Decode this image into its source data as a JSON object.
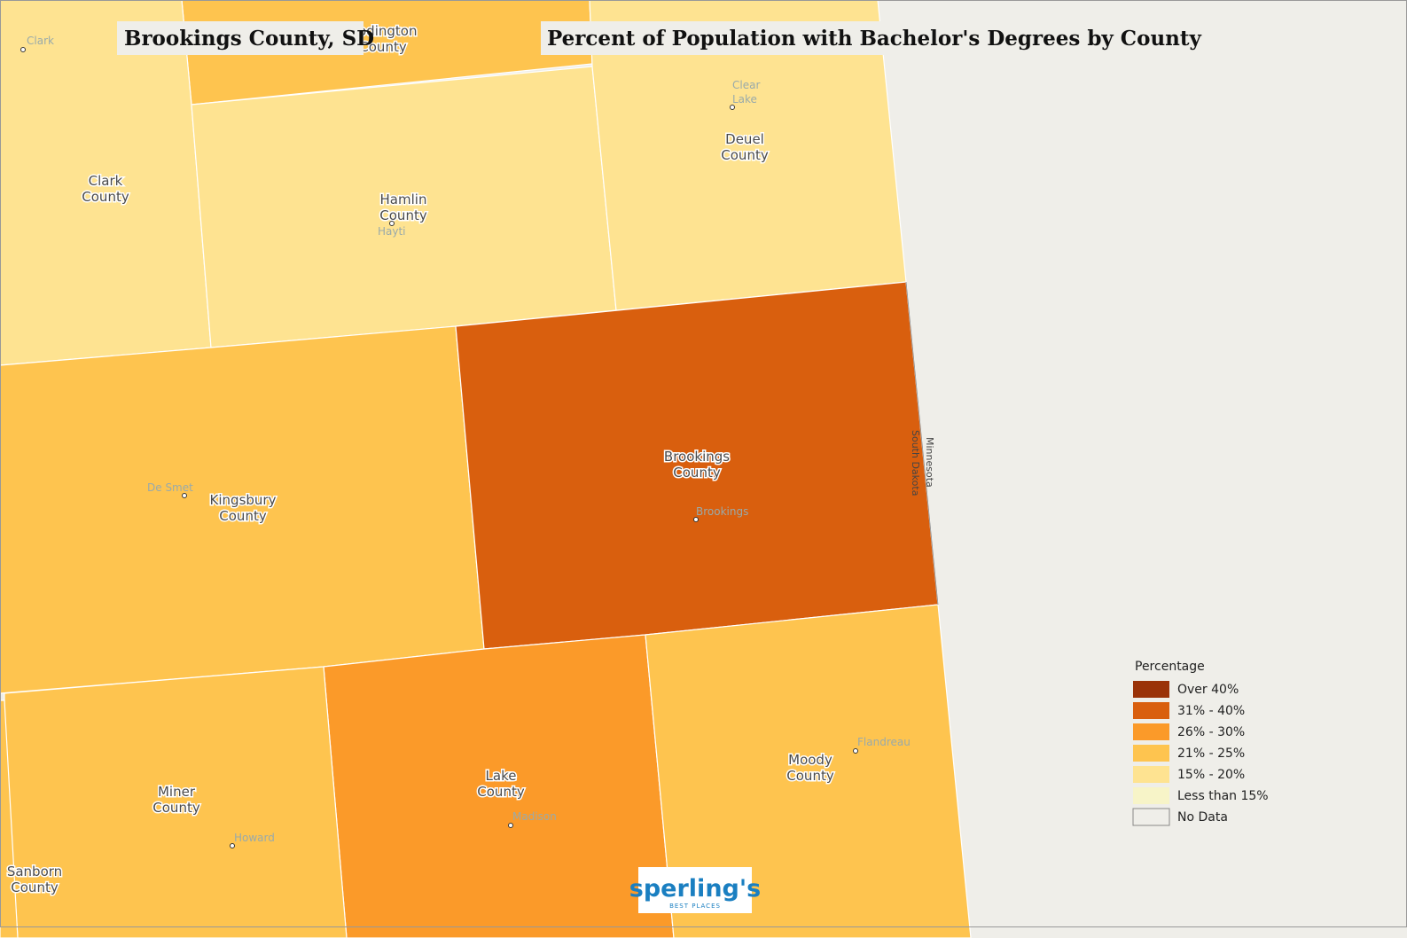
{
  "header": {
    "location": "Brookings County, SD",
    "title": "Percent of Population with Bachelor's Degrees by County"
  },
  "counties": [
    {
      "label": [
        "Codington",
        "County"
      ]
    },
    {
      "label": [
        "Clark",
        "County"
      ]
    },
    {
      "label": [
        "Hamlin",
        "County"
      ]
    },
    {
      "label": [
        "Deuel",
        "County"
      ]
    },
    {
      "label": [
        "Kingsbury",
        "County"
      ]
    },
    {
      "label": [
        "Brookings",
        "County"
      ]
    },
    {
      "label": [
        "Lake",
        "County"
      ]
    },
    {
      "label": [
        "Moody",
        "County"
      ]
    },
    {
      "label": [
        "Miner",
        "County"
      ]
    },
    {
      "label": [
        "Sanborn",
        "County"
      ]
    }
  ],
  "cities": [
    {
      "label": [
        "Clark"
      ]
    },
    {
      "label": [
        "Clear",
        "Lake"
      ]
    },
    {
      "label": [
        "Hayti"
      ]
    },
    {
      "label": [
        "De Smet"
      ]
    },
    {
      "label": [
        "Brookings"
      ]
    },
    {
      "label": [
        "Flandreau"
      ]
    },
    {
      "label": [
        "Madison"
      ]
    },
    {
      "label": [
        "Howard"
      ]
    }
  ],
  "state_border": [
    "Minnesota",
    "South Dakota"
  ],
  "legend": {
    "title": "Percentage",
    "items": [
      {
        "label": "Over 40%",
        "color": "#9a3208"
      },
      {
        "label": "31% - 40%",
        "color": "#d95f0e"
      },
      {
        "label": "26% - 30%",
        "color": "#fb9a29"
      },
      {
        "label": "21% - 25%",
        "color": "#fec44f"
      },
      {
        "label": "15% - 20%",
        "color": "#fee391"
      },
      {
        "label": "Less than 15%",
        "color": "#f7f4c8"
      },
      {
        "label": "No Data",
        "color": "#efeee9"
      }
    ]
  },
  "logo": {
    "name": "sperling's",
    "tagline": "BEST PLACES"
  }
}
